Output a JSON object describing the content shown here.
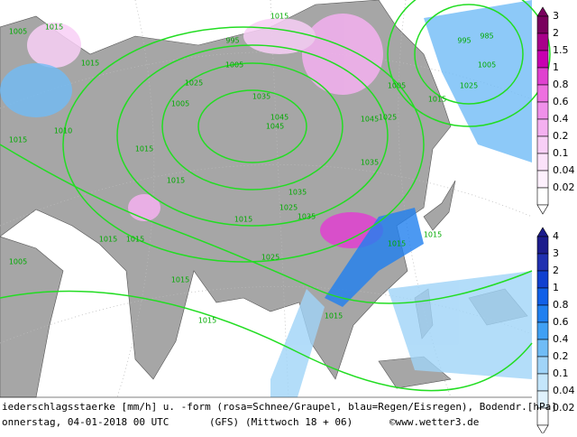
{
  "map": {
    "isobar_labels": [
      "1005",
      "1015",
      "1015",
      "1005",
      "1015",
      "1025",
      "995",
      "1005",
      "1015",
      "1035",
      "1045",
      "1045",
      "1035",
      "1025",
      "1015",
      "1025",
      "1035",
      "1045",
      "1035",
      "1025",
      "1015",
      "1015",
      "1015",
      "1015",
      "1015",
      "1005",
      "1015",
      "995",
      "985",
      "1005",
      "1025",
      "1015",
      "1015",
      "1015",
      "1015",
      "1010",
      "1005"
    ],
    "snow_legend": [
      {
        "label": "3",
        "color": "#7a005e"
      },
      {
        "label": "2",
        "color": "#a8008a"
      },
      {
        "label": "1.5",
        "color": "#c800b0"
      },
      {
        "label": "1",
        "color": "#e040d0"
      },
      {
        "label": "0.8",
        "color": "#ee70e0"
      },
      {
        "label": "0.6",
        "color": "#f090ea"
      },
      {
        "label": "0.4",
        "color": "#f4b0f0"
      },
      {
        "label": "0.2",
        "color": "#f8cff6"
      },
      {
        "label": "0.1",
        "color": "#fbe2fa"
      },
      {
        "label": "0.04",
        "color": "#fdf0fd"
      },
      {
        "label": "0.02",
        "color": "#ffffff"
      }
    ],
    "rain_legend": [
      {
        "label": "4",
        "color": "#1c1c8c"
      },
      {
        "label": "3",
        "color": "#2030b0"
      },
      {
        "label": "2",
        "color": "#1040d0"
      },
      {
        "label": "1",
        "color": "#1060e8"
      },
      {
        "label": "0.8",
        "color": "#2080f0"
      },
      {
        "label": "0.6",
        "color": "#40a0f4"
      },
      {
        "label": "0.4",
        "color": "#70bcf6"
      },
      {
        "label": "0.2",
        "color": "#a0d4f8"
      },
      {
        "label": "0.1",
        "color": "#c4e6fb"
      },
      {
        "label": "0.04",
        "color": "#e0f2fd"
      },
      {
        "label": "0.02",
        "color": "#ffffff"
      }
    ],
    "footer": {
      "description": "iederschlagsstaerke [mm/h] u. -form (rosa=Schnee/Graupel, blau=Regen/Eisregen), Bodendr.[hPa]",
      "date": "onnerstag, 04-01-2018  00 UTC",
      "model": "(GFS)",
      "run": "(Mittwoch 18 + 06)",
      "copyright": "©www.wetter3.de"
    }
  }
}
